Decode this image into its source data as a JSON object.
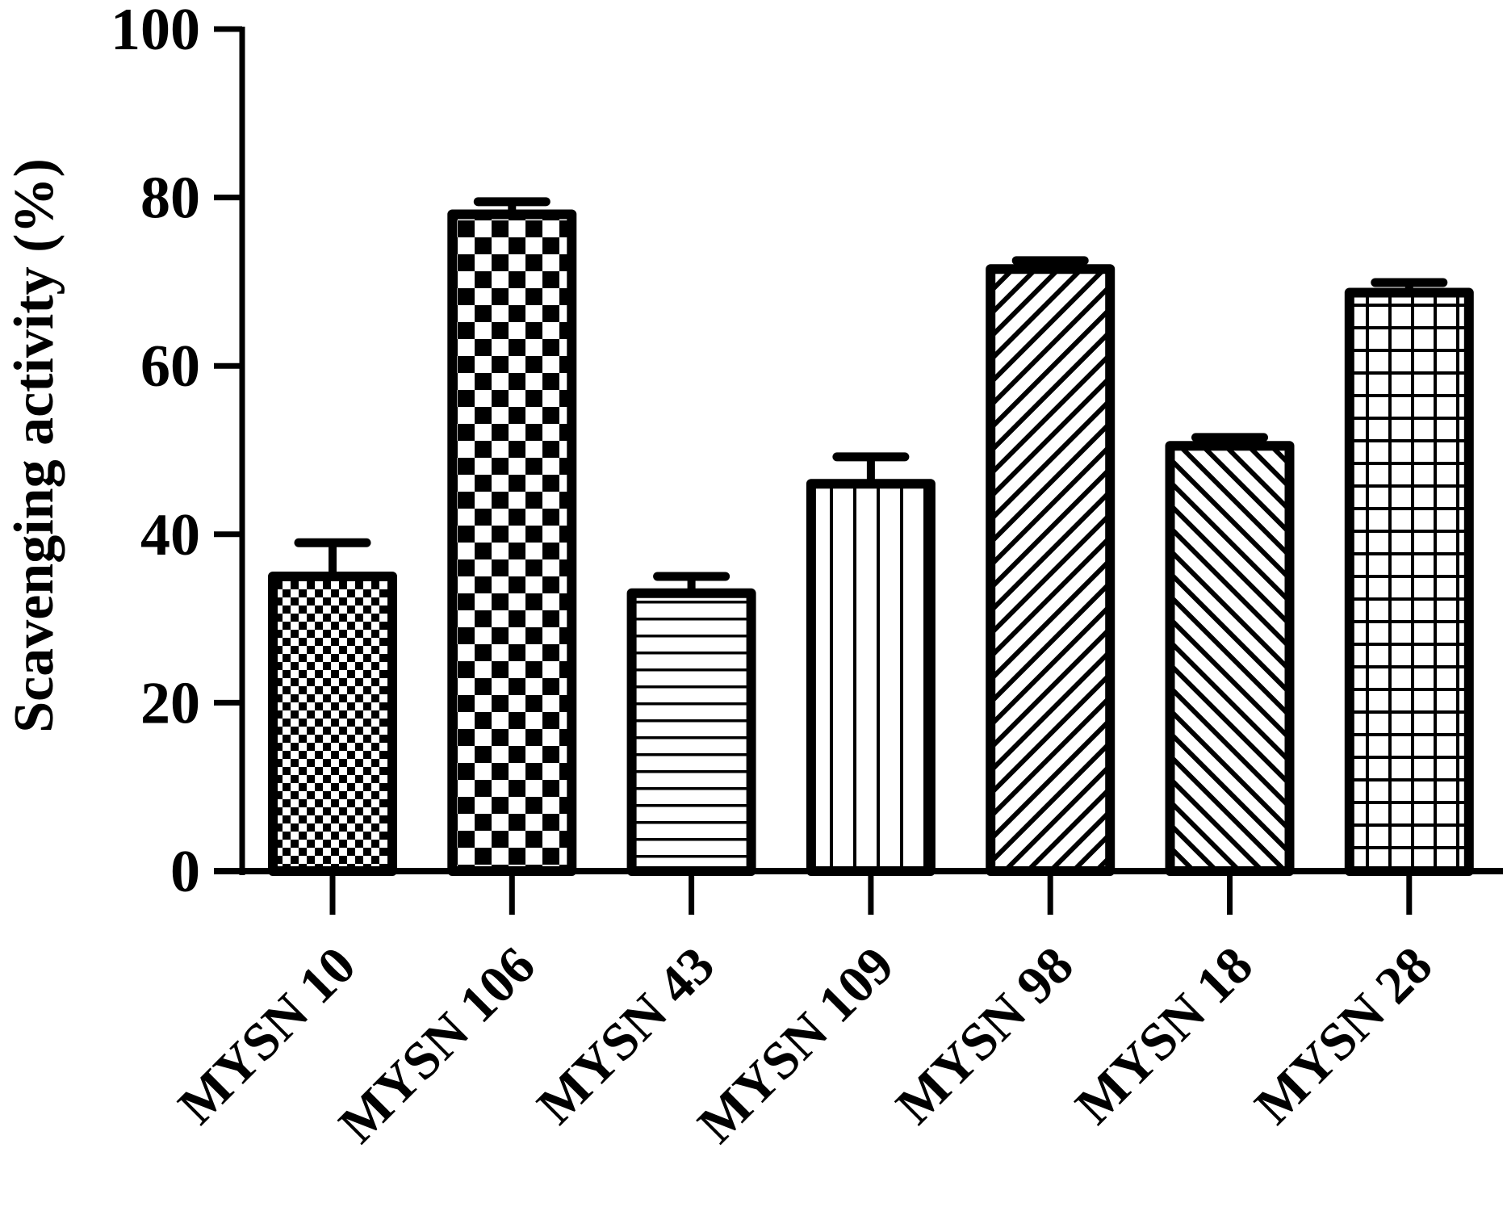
{
  "chart_data": {
    "type": "bar",
    "title": "",
    "xlabel": "",
    "ylabel": "Scavenging activity (%)",
    "ylim": [
      0,
      100
    ],
    "yticks": [
      0,
      20,
      40,
      60,
      80,
      100
    ],
    "ytick_labels": [
      "0",
      "20",
      "40",
      "60",
      "80",
      "100"
    ],
    "grid": false,
    "legend": null,
    "categories": [
      "MYSN 10",
      "MYSN 106",
      "MYSN 43",
      "MYSN 109",
      "MYSN 98",
      "MYSN 18",
      "MYSN 28"
    ],
    "values": [
      35.0,
      78.0,
      33.0,
      46.0,
      71.5,
      50.5,
      68.7
    ],
    "errors": [
      4.0,
      1.5,
      2.0,
      3.2,
      1.0,
      1.0,
      1.2
    ],
    "patterns": [
      "fine-checker",
      "coarse-checker",
      "horizontal-lines",
      "vertical-lines",
      "diagonal-forward",
      "diagonal-back",
      "grid"
    ],
    "colors": {
      "bar_fill": "#ffffff",
      "bar_stroke": "#000000",
      "axis": "#000000"
    }
  }
}
